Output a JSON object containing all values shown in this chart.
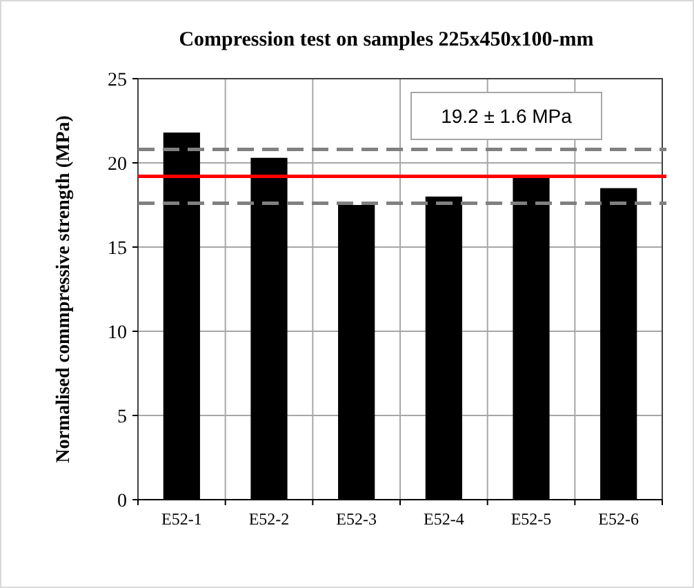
{
  "chart_data": {
    "type": "bar",
    "title": "Compression test on samples 225x450x100-mm",
    "ylabel": "Normalised commpressive strength (MPa)",
    "categories": [
      "E52-1",
      "E52-2",
      "E52-3",
      "E52-4",
      "E52-5",
      "E52-6"
    ],
    "values": [
      21.8,
      20.3,
      17.5,
      18.0,
      19.2,
      18.5
    ],
    "color": "#000000",
    "ylim": [
      0,
      25
    ],
    "yticks": [
      0,
      5,
      10,
      15,
      20,
      25
    ],
    "grid": true,
    "ref_lines": [
      {
        "axis": "y",
        "value": 19.2,
        "color": "#ff0000",
        "line_style": "solid"
      },
      {
        "axis": "y",
        "value": 20.8,
        "color": "#808080",
        "line_style": "dashed"
      },
      {
        "axis": "y",
        "value": 17.6,
        "color": "#808080",
        "line_style": "dashed"
      }
    ],
    "annotations": [
      "19.2 ± 1.6 MPa"
    ]
  }
}
